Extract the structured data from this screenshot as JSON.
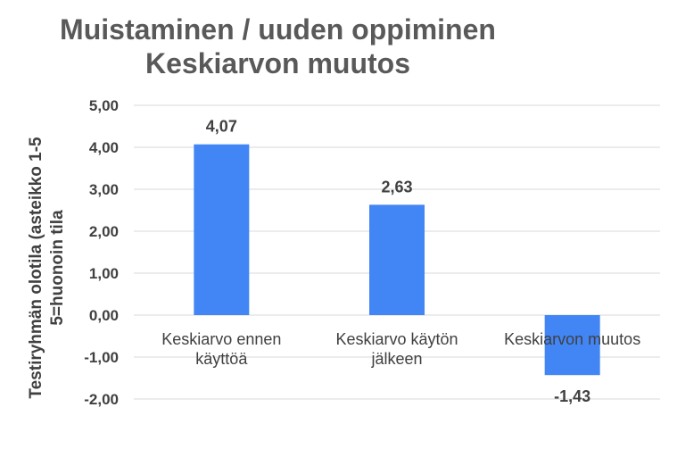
{
  "chart_data": {
    "type": "bar",
    "title": "Muistaminen / uuden oppiminen",
    "subtitle": "Keskiarvon muutos",
    "ylabel_lines": [
      "Testiryhmän olotila (asteikko 1-5",
      "5=huonoin tila"
    ],
    "categories": [
      [
        "Keskiarvo ennen",
        "käyttöä"
      ],
      [
        "Keskiarvo käytön",
        "jälkeen"
      ],
      [
        "Keskiarvon muutos"
      ]
    ],
    "values": [
      4.07,
      2.63,
      -1.43
    ],
    "data_labels": [
      "4,07",
      "2,63",
      "-1,43"
    ],
    "ylim": [
      -2,
      5
    ],
    "yticks": [
      5,
      4,
      3,
      2,
      1,
      0,
      -1,
      -2
    ],
    "ytick_labels": [
      "5,00",
      "4,00",
      "3,00",
      "2,00",
      "1,00",
      "0,00",
      "-1,00",
      "-2,00"
    ],
    "grid": true,
    "bar_color": "#4285f4",
    "grid_color": "#d9d9d9"
  }
}
